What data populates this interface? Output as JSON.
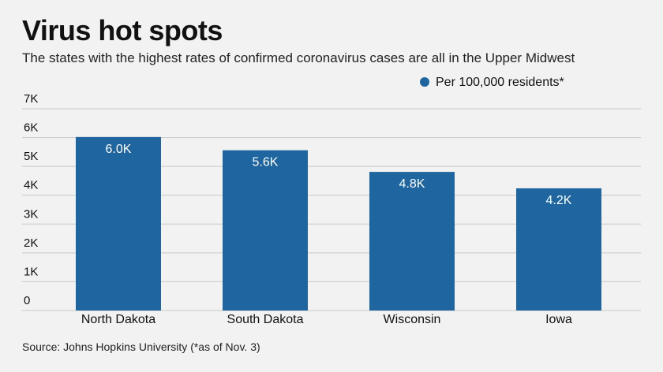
{
  "chart_data": {
    "type": "bar",
    "title": "Virus hot spots",
    "subtitle": "The states with the highest rates of confirmed coronavirus cases are all in the Upper Midwest",
    "source": "Source: Johns Hopkins University (*as of Nov. 3)",
    "categories": [
      "North Dakota",
      "South Dakota",
      "Wisconsin",
      "Iowa"
    ],
    "series": [
      {
        "name": "Per 100,000 residents*",
        "values": [
          6020,
          5560,
          4810,
          4240
        ],
        "labels": [
          "6.0K",
          "5.6K",
          "4.8K",
          "4.2K"
        ],
        "color": "#1f65a0"
      }
    ],
    "yticks": [
      {
        "value": 0,
        "label": "0"
      },
      {
        "value": 1000,
        "label": "1K"
      },
      {
        "value": 2000,
        "label": "2K"
      },
      {
        "value": 3000,
        "label": "3K"
      },
      {
        "value": 4000,
        "label": "4K"
      },
      {
        "value": 5000,
        "label": "5K"
      },
      {
        "value": 6000,
        "label": "6K"
      },
      {
        "value": 7000,
        "label": "7K"
      }
    ],
    "ylim": [
      0,
      7000
    ],
    "grid": true,
    "legend_position": "top-right",
    "gridline_color": "#c8c9c8"
  }
}
